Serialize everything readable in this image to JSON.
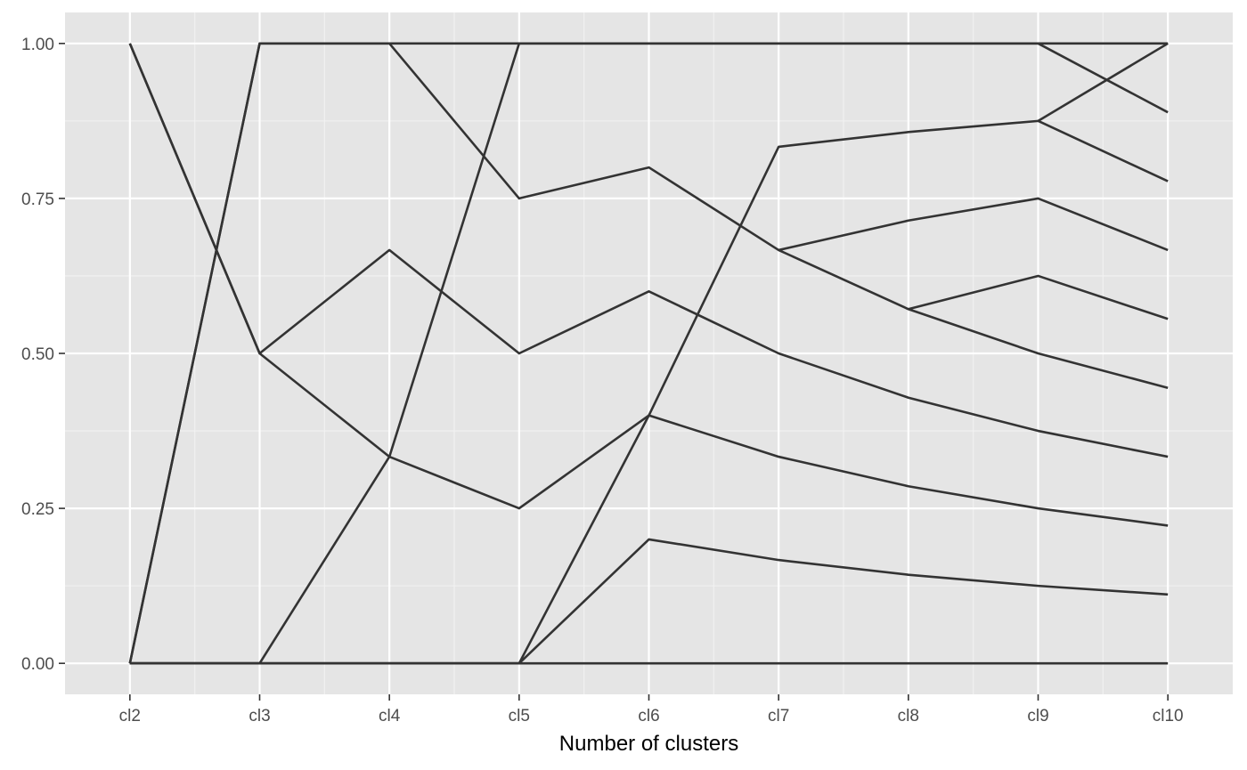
{
  "chart_data": {
    "type": "line",
    "title": "",
    "xlabel": "Number of clusters",
    "ylabel": "",
    "categories": [
      "cl2",
      "cl3",
      "cl4",
      "cl5",
      "cl6",
      "cl7",
      "cl8",
      "cl9",
      "cl10"
    ],
    "ylim": [
      -0.05,
      1.05
    ],
    "y_ticks": [
      0.0,
      0.25,
      0.5,
      0.75,
      1.0
    ],
    "y_tick_labels": [
      "0.00",
      "0.25",
      "0.50",
      "0.75",
      "1.00"
    ],
    "grid": true,
    "legend": "none",
    "colors": {
      "panel": "#e5e5e5",
      "grid_major": "#ffffff",
      "grid_minor": "#f2f2f2",
      "line": "#333333",
      "tick_label": "#4d4d4d",
      "axis_title": "#000000"
    },
    "series": [
      {
        "values": [
          1.0,
          0.5,
          0.6667,
          0.5,
          0.6,
          0.5,
          0.4286,
          0.375,
          0.3333
        ]
      },
      {
        "values": [
          1.0,
          0.5,
          0.3333,
          0.25,
          0.4,
          0.3333,
          0.2857,
          0.25,
          0.2222
        ]
      },
      {
        "values": [
          0.0,
          1.0,
          1.0,
          0.75,
          0.8,
          0.6667,
          0.5714,
          0.5,
          0.4444
        ]
      },
      {
        "values": [
          0.0,
          1.0,
          1.0,
          1.0,
          1.0,
          1.0,
          1.0,
          1.0,
          0.8889
        ]
      },
      {
        "values": [
          0.0,
          0.0,
          0.3333,
          1.0,
          1.0,
          1.0,
          1.0,
          1.0,
          1.0
        ]
      },
      {
        "values": [
          0.0,
          0.0,
          0.0,
          0.0,
          0.4,
          0.8333,
          0.8571,
          0.875,
          0.7778
        ]
      },
      {
        "values": [
          0.0,
          0.0,
          0.0,
          0.0,
          0.2,
          0.1667,
          0.1429,
          0.125,
          0.1111
        ]
      },
      {
        "values": [
          0.0,
          0.0,
          0.0,
          0.0,
          0.0,
          0.0,
          0.0,
          0.0,
          0.0
        ]
      },
      {
        "values": [
          null,
          null,
          null,
          null,
          null,
          0.6667,
          0.7143,
          0.75,
          0.6667
        ]
      },
      {
        "values": [
          null,
          null,
          null,
          null,
          null,
          null,
          0.5714,
          0.625,
          0.5556
        ]
      },
      {
        "values": [
          null,
          null,
          null,
          null,
          null,
          null,
          null,
          0.875,
          1.0
        ]
      }
    ]
  }
}
